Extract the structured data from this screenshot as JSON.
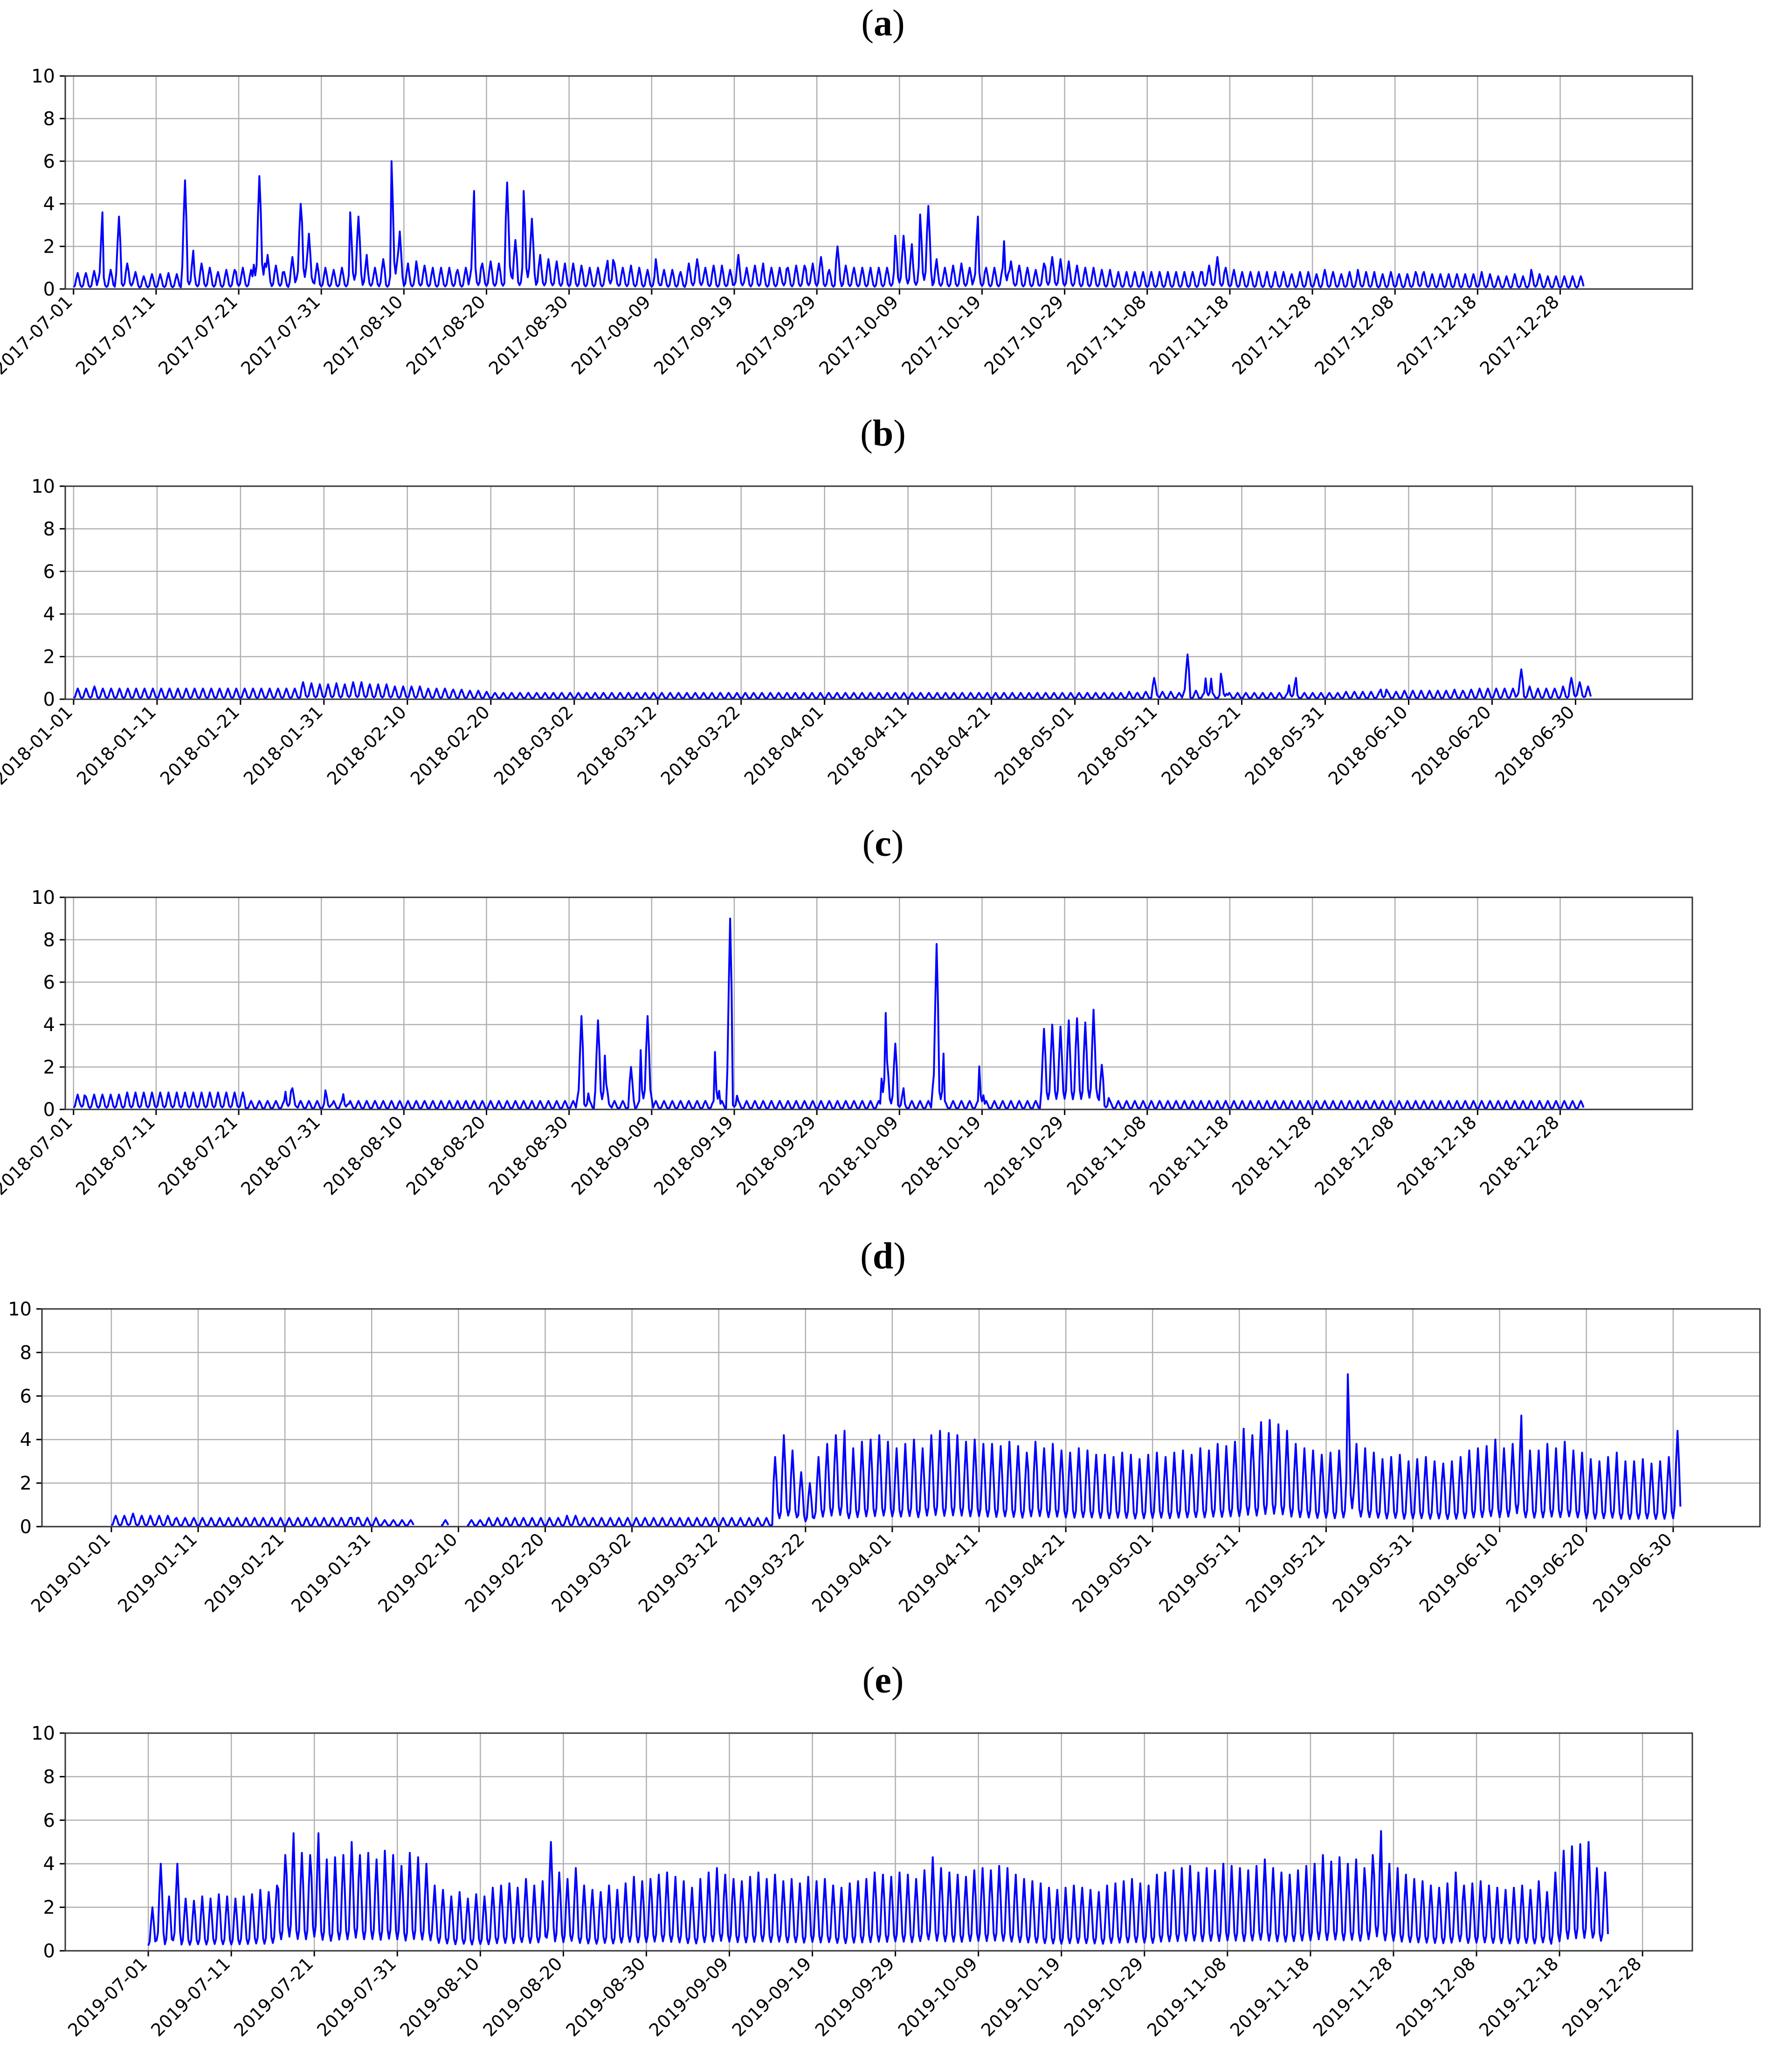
{
  "figure": {
    "panel_labels": [
      "a",
      "b",
      "c",
      "d",
      "e"
    ]
  },
  "chart_data": [
    {
      "panel": "a",
      "type": "line",
      "series_color": "#0000ff",
      "ylim": [
        0,
        10
      ],
      "yticks": [
        0,
        2,
        4,
        6,
        8,
        10
      ],
      "grid": true,
      "xlim": [
        "2017-06-30",
        "2018-01-13"
      ],
      "xticks": [
        "2017-07-01",
        "2017-07-11",
        "2017-07-21",
        "2017-07-31",
        "2017-08-10",
        "2017-08-20",
        "2017-08-30",
        "2017-09-09",
        "2017-09-19",
        "2017-09-29",
        "2017-10-09",
        "2017-10-19",
        "2017-10-29",
        "2017-11-08",
        "2017-11-18",
        "2017-11-28",
        "2017-12-08",
        "2017-12-18",
        "2017-12-28"
      ],
      "x_start": "2017-07-01",
      "x_end": "2017-12-31",
      "daily_peaks": [
        0.75,
        0.8,
        0.75,
        0.85,
        3.6,
        0.8,
        0.9,
        3.4,
        1.2,
        1.3,
        0.8,
        0.6,
        0.7,
        0.7,
        0.7,
        0.75,
        0.7,
        0.7,
        5.1,
        1.8,
        1.0,
        1.2,
        1.0,
        0.9,
        0.8,
        0.9,
        0.9,
        1.2,
        1.0,
        0.9,
        5.3,
        5.6,
        1.6,
        1.1,
        1.2,
        0.8,
        1.5,
        4.0,
        4.7,
        2.6,
        1.2,
        1.0,
        1.0,
        0.9,
        1.0,
        1.0,
        3.6,
        3.4,
        1.6,
        1.2,
        1.0,
        1.4,
        0.9,
        6.0,
        2.7,
        1.2,
        1.0,
        1.3,
        1.1,
        1.0,
        0.9,
        1.0,
        1.0,
        1.1,
        0.9,
        1.0,
        4.6,
        1.5,
        1.2,
        1.3,
        1.2,
        1.3,
        5.0,
        2.3,
        1.5,
        4.6,
        3.3,
        1.6,
        1.4,
        1.4,
        1.3,
        1.2,
        1.1,
        1.2,
        1.1,
        1.0,
        1.0,
        1.0,
        1.0,
        2.1,
        1.2,
        1.0,
        1.1,
        1.0,
        1.0,
        0.9,
        0.9,
        1.4,
        0.9,
        0.9,
        0.9,
        0.8,
        1.2,
        1.4,
        1.5,
        1.0,
        1.1,
        0.9,
        1.1,
        0.9,
        1.6,
        1.4,
        1.0,
        1.1,
        1.2,
        0.9,
        1.0,
        1.0,
        1.4,
        1.0,
        1.1,
        1.1,
        1.4,
        1.2,
        1.5,
        1.1,
        0.9,
        2.0,
        1.1,
        1.1,
        1.0,
        1.0,
        1.0,
        0.9,
        1.0,
        1.0,
        1.2,
        2.5,
        2.5,
        2.1,
        1.6,
        3.5,
        3.9,
        1.4,
        1.2,
        1.0,
        1.1,
        1.1,
        1.2,
        1.0,
        3.4,
        1.2,
        1.0,
        1.0,
        1.0,
        3.4,
        1.3,
        1.1,
        1.0,
        1.0,
        0.9,
        1.2,
        1.6,
        1.5,
        1.4,
        1.3,
        1.2,
        1.1,
        1.0,
        1.0,
        1.0,
        0.9,
        0.9,
        0.8,
        0.8,
        0.8,
        0.8,
        0.8,
        0.8,
        0.8,
        0.8,
        0.8,
        0.8,
        0.8,
        0.8,
        0.8,
        0.8,
        0.8,
        1.2,
        1.1,
        1.5,
        1.2,
        1.0,
        0.9,
        0.8,
        0.8,
        0.8,
        0.8,
        0.8,
        0.7,
        0.8,
        0.8,
        0.8,
        0.7,
        0.8,
        0.8,
        0.8,
        0.7,
        0.9,
        0.8,
        0.8,
        0.7,
        0.8,
        0.7,
        0.9,
        0.8,
        0.8,
        0.7,
        0.7,
        0.8,
        0.8,
        0.7,
        0.7,
        0.8,
        1.0,
        0.8,
        0.7,
        0.7,
        0.7,
        0.7,
        0.7,
        0.7,
        0.7,
        0.7,
        0.8,
        0.7,
        0.7,
        0.6,
        0.6,
        0.6,
        0.7,
        0.6,
        0.6,
        0.9,
        0.7,
        0.6,
        0.6,
        0.6,
        0.6,
        0.6,
        0.6,
        0.6
      ]
    },
    {
      "panel": "b",
      "type": "line",
      "series_color": "#0000ff",
      "ylim": [
        0,
        10
      ],
      "yticks": [
        0,
        2,
        4,
        6,
        8,
        10
      ],
      "grid": true,
      "xlim": [
        "2017-12-31",
        "2018-07-14"
      ],
      "xticks": [
        "2018-01-01",
        "2018-01-11",
        "2018-01-21",
        "2018-01-31",
        "2018-02-10",
        "2018-02-20",
        "2018-03-02",
        "2018-03-12",
        "2018-03-22",
        "2018-04-01",
        "2018-04-11",
        "2018-04-21",
        "2018-05-01",
        "2018-05-11",
        "2018-05-21",
        "2018-05-31",
        "2018-06-10",
        "2018-06-20",
        "2018-06-30"
      ],
      "x_start": "2018-01-01",
      "x_end": "2018-07-02",
      "daily_peaks": [
        0.5,
        0.5,
        0.6,
        0.5,
        0.5,
        0.5,
        0.5,
        0.5,
        0.5,
        0.5,
        0.5,
        0.5,
        0.5,
        0.5,
        0.5,
        0.5,
        0.5,
        0.5,
        0.5,
        0.5,
        0.5,
        0.5,
        0.5,
        0.5,
        0.5,
        0.5,
        0.5,
        0.5,
        0.5,
        0.5,
        0.8,
        0.75,
        0.7,
        0.7,
        0.75,
        0.7,
        0.8,
        0.8,
        0.75,
        0.7,
        0.7,
        0.7,
        0.6,
        0.6,
        0.6,
        0.6,
        0.5,
        0.5,
        0.5,
        0.5,
        0.45,
        0.45,
        0.4,
        0.4,
        0.35,
        0.3,
        0.3,
        0.3,
        0.3,
        0.3,
        0.3,
        0.3,
        0.3,
        0.3,
        0.3,
        0.3,
        0.3,
        0.3,
        0.3,
        0.3,
        0.3,
        0.3,
        0.3,
        0.3,
        0.3,
        0.3,
        0.3,
        0.3,
        0.3,
        0.3,
        0.3,
        0.3,
        0.3,
        0.3,
        0.3,
        0.3,
        0.3,
        0.3,
        0.3,
        0.3,
        0.3,
        0.3,
        0.3,
        0.3,
        0.3,
        0.3,
        0.3,
        0.3,
        0.3,
        0.3,
        0.3,
        0.3,
        0.3,
        0.3,
        0.3,
        0.3,
        0.3,
        0.3,
        0.3,
        0.3,
        0.3,
        0.3,
        0.3,
        0.3,
        0.3,
        0.3,
        0.3,
        0.3,
        0.3,
        0.3,
        0.3,
        0.3,
        0.3,
        0.3,
        0.3,
        0.3,
        0.3,
        0.3,
        0.3,
        0.3,
        0.3,
        0.3,
        0.3,
        0.3,
        0.3,
        0.3,
        0.3,
        0.3,
        0.3,
        0.35,
        0.3,
        0.35,
        1.0,
        0.35,
        0.35,
        0.3,
        2.1,
        0.4,
        0.3,
        1.5,
        0.3,
        1.2,
        0.3,
        0.3,
        0.3,
        0.3,
        0.3,
        0.3,
        0.3,
        0.3,
        1.0,
        0.3,
        0.3,
        0.3,
        0.3,
        0.3,
        0.3,
        0.35,
        0.35,
        0.35,
        0.35,
        0.35,
        0.7,
        0.35,
        0.35,
        0.4,
        0.4,
        0.4,
        0.4,
        0.4,
        0.4,
        0.45,
        0.4,
        0.45,
        0.45,
        0.5,
        0.5,
        0.5,
        0.5,
        0.5,
        1.4,
        0.6,
        0.5,
        0.5,
        0.5,
        0.5,
        0.6,
        1.0,
        0.8,
        0.6
      ]
    },
    {
      "panel": "c",
      "type": "line",
      "series_color": "#0000ff",
      "ylim": [
        0,
        10
      ],
      "yticks": [
        0,
        2,
        4,
        6,
        8,
        10
      ],
      "grid": true,
      "xlim": [
        "2018-06-30",
        "2019-01-13"
      ],
      "xticks": [
        "2018-07-01",
        "2018-07-11",
        "2018-07-21",
        "2018-07-31",
        "2018-08-10",
        "2018-08-20",
        "2018-08-30",
        "2018-09-09",
        "2018-09-19",
        "2018-09-29",
        "2018-10-09",
        "2018-10-19",
        "2018-10-29",
        "2018-11-08",
        "2018-11-18",
        "2018-11-28",
        "2018-12-08",
        "2018-12-18",
        "2018-12-28"
      ],
      "x_start": "2018-07-01",
      "x_end": "2018-12-31",
      "daily_peaks": [
        0.7,
        1.0,
        0.6,
        0.7,
        0.7,
        0.7,
        0.7,
        0.7,
        0.7,
        0.8,
        0.8,
        0.8,
        0.8,
        0.8,
        0.8,
        0.8,
        0.8,
        0.8,
        0.8,
        0.8,
        0.8,
        0.8,
        0.8,
        0.8,
        0.8,
        0.8,
        0.8,
        0.8,
        0.8,
        0.8,
        0.4,
        0.4,
        0.4,
        0.4,
        0.4,
        0.4,
        0.4,
        1.3,
        1.0,
        0.4,
        0.4,
        0.4,
        0.4,
        0.4,
        0.9,
        0.4,
        0.4,
        1.1,
        0.4,
        0.4,
        0.4,
        0.4,
        0.4,
        0.4,
        0.4,
        0.4,
        0.4,
        0.4,
        0.4,
        0.4,
        0.4,
        0.4,
        0.4,
        0.4,
        0.4,
        0.4,
        0.4,
        0.4,
        0.4,
        0.4,
        0.4,
        0.4,
        0.4,
        0.4,
        0.4,
        0.4,
        0.4,
        0.4,
        0.4,
        0.4,
        0.4,
        0.4,
        0.4,
        0.4,
        0.4,
        0.4,
        0.4,
        0.4,
        4.4,
        1.2,
        0.4,
        4.2,
        4.0,
        1.2,
        0.4,
        0.4,
        0.4,
        2.0,
        0.4,
        4.3,
        4.4,
        0.4,
        0.4,
        0.4,
        0.4,
        0.4,
        0.4,
        0.4,
        0.4,
        0.4,
        0.4,
        0.4,
        4.2,
        0.4,
        9.0,
        1.0,
        0.4,
        0.4,
        0.4,
        0.4,
        0.4,
        0.4,
        0.4,
        0.4,
        0.4,
        0.4,
        0.4,
        0.4,
        0.4,
        0.4,
        0.4,
        0.4,
        0.4,
        0.4,
        0.4,
        0.4,
        0.4,
        0.4,
        0.4,
        0.4,
        0.4,
        6.8,
        2.3,
        3.1,
        1.0,
        0.4,
        0.4,
        0.4,
        0.4,
        0.4,
        7.8,
        4.0,
        0.4,
        0.4,
        0.4,
        0.4,
        0.4,
        0.4,
        3.2,
        0.4,
        0.4,
        0.4,
        0.4,
        0.4,
        0.4,
        0.4,
        0.4,
        0.4,
        0.4,
        3.8,
        4.0,
        4.1,
        3.9,
        4.2,
        4.0,
        4.3,
        4.1,
        4.6,
        4.7,
        2.1,
        0.8,
        0.4,
        0.4,
        0.4,
        0.4,
        0.4,
        0.4,
        0.4,
        0.4,
        0.4,
        0.4,
        0.4,
        0.4,
        0.4,
        0.4,
        0.4,
        0.4,
        0.4,
        0.4,
        0.4,
        0.4,
        0.4,
        0.4,
        0.4,
        0.4,
        0.4,
        0.4,
        0.4,
        0.4,
        0.4,
        0.4,
        0.4,
        0.4,
        0.4,
        0.4,
        0.4,
        0.4,
        0.4,
        0.4,
        0.4,
        0.4,
        0.4,
        0.4,
        0.4,
        0.4,
        0.4,
        0.4,
        0.4,
        0.4,
        0.4,
        0.4,
        0.4,
        0.4,
        0.4,
        0.4,
        0.4,
        0.4,
        0.4,
        0.4,
        0.4,
        0.4,
        0.4,
        0.4,
        0.4,
        0.4,
        0.4,
        0.4,
        0.4,
        0.4,
        0.4,
        0.4,
        0.4,
        0.4,
        0.4,
        0.4,
        0.4,
        0.4,
        0.4,
        0.4,
        0.4,
        0.4,
        0.4,
        0.4,
        0.4
      ]
    },
    {
      "panel": "d",
      "type": "line",
      "series_color": "#0000ff",
      "ylim": [
        0,
        10
      ],
      "yticks": [
        0,
        2,
        4,
        6,
        8,
        10
      ],
      "grid": true,
      "xlim": [
        "2018-12-24",
        "2019-07-10"
      ],
      "xticks": [
        "2019-01-01",
        "2019-01-11",
        "2019-01-21",
        "2019-01-31",
        "2019-02-10",
        "2019-02-20",
        "2019-03-02",
        "2019-03-12",
        "2019-03-22",
        "2019-04-01",
        "2019-04-11",
        "2019-04-21",
        "2019-05-01",
        "2019-05-11",
        "2019-05-21",
        "2019-05-31",
        "2019-06-10",
        "2019-06-20",
        "2019-06-30"
      ],
      "x_start": "2019-01-01",
      "x_end": "2019-07-01",
      "gaps": [
        [
          "2019-02-05",
          "2019-02-08"
        ],
        [
          "2019-02-09",
          "2019-02-11"
        ]
      ],
      "daily_peaks": [
        0.5,
        0.5,
        0.6,
        0.5,
        0.5,
        0.5,
        0.5,
        0.5,
        0.4,
        0.4,
        0.4,
        0.4,
        0.4,
        0.4,
        0.4,
        0.4,
        0.4,
        0.4,
        0.4,
        0.4,
        0.4,
        0.4,
        0.4,
        0.4,
        0.4,
        0.4,
        0.4,
        0.4,
        0.4,
        0.4,
        0.6,
        0.4,
        0.4,
        0.4,
        0.3,
        0.3,
        0.3,
        0.3,
        0.3,
        0.3,
        0.3,
        0.3,
        0.3,
        0.3,
        0.3,
        0.3,
        0.3,
        0.4,
        0.4,
        0.4,
        0.4,
        0.4,
        0.4,
        0.4,
        0.4,
        0.4,
        0.4,
        0.5,
        0.5,
        0.4,
        0.4,
        0.4,
        0.4,
        0.4,
        0.4,
        0.4,
        0.4,
        0.4,
        0.4,
        0.4,
        0.4,
        0.4,
        0.4,
        0.4,
        0.4,
        0.4,
        0.4,
        0.4,
        0.4,
        0.4,
        0.4,
        0.4,
        0.4,
        3.2,
        4.2,
        3.5,
        2.5,
        2.0,
        3.2,
        3.8,
        4.2,
        4.4,
        3.2,
        3.6,
        3.9,
        4.0,
        4.2,
        3.9,
        3.6,
        3.8,
        4.0,
        3.6,
        4.2,
        4.4,
        4.1,
        4.3,
        4.2,
        3.9,
        4.0,
        3.8,
        3.8,
        3.7,
        3.9,
        3.7,
        3.4,
        3.9,
        4.0,
        3.6,
        3.8,
        3.5,
        3.4,
        3.6,
        3.5,
        3.3,
        3.3,
        3.2,
        3.4,
        3.3,
        3.1,
        3.2,
        3.3,
        3.4,
        3.2,
        3.4,
        3.5,
        3.3,
        3.6,
        3.5,
        3.8,
        3.7,
        3.9,
        4.0,
        4.5,
        4.2,
        4.8,
        4.9,
        4.7,
        4.4,
        3.8,
        3.6,
        3.5,
        3.3,
        3.4,
        3.2,
        3.5,
        7.0,
        3.8,
        3.6,
        3.4,
        3.1,
        3.2,
        3.3,
        3.0,
        3.1,
        3.2,
        3.0,
        3.1,
        2.9,
        3.0,
        3.2,
        3.5,
        3.6,
        3.7,
        4.0,
        3.6,
        3.8,
        5.1,
        3.5,
        3.4,
        3.5,
        3.8,
        3.6,
        3.9,
        3.5,
        3.4,
        3.1,
        3.0,
        3.2,
        3.4,
        3.0,
        2.9,
        3.0,
        3.1,
        2.9,
        3.0,
        3.2,
        4.4
      ]
    },
    {
      "panel": "e",
      "type": "line",
      "series_color": "#0000ff",
      "ylim": [
        0,
        10
      ],
      "yticks": [
        0,
        2,
        4,
        6,
        8,
        10
      ],
      "grid": true,
      "xlim": [
        "2019-06-21",
        "2020-01-03"
      ],
      "xticks": [
        "2019-07-01",
        "2019-07-11",
        "2019-07-21",
        "2019-07-31",
        "2019-08-10",
        "2019-08-20",
        "2019-08-30",
        "2019-09-09",
        "2019-09-19",
        "2019-09-29",
        "2019-10-09",
        "2019-10-19",
        "2019-10-29",
        "2019-11-08",
        "2019-11-18",
        "2019-11-28",
        "2019-12-08",
        "2019-12-18",
        "2019-12-28"
      ],
      "x_start": "2019-07-01",
      "x_end": "2019-12-24",
      "daily_peaks": [
        2.0,
        4.0,
        2.5,
        4.0,
        2.4,
        2.3,
        2.5,
        2.4,
        2.6,
        2.5,
        2.4,
        2.5,
        2.6,
        2.8,
        2.7,
        3.0,
        4.4,
        5.4,
        4.5,
        4.4,
        5.4,
        4.2,
        3.8,
        4.3,
        4.4,
        5.0,
        4.4,
        4.5,
        4.2,
        4.6,
        4.4,
        3.9,
        4.5,
        4.3,
        4.0,
        3.0,
        2.8,
        2.5,
        2.7,
        2.4,
        2.6,
        2.5,
        2.9,
        3.0,
        3.1,
        2.9,
        3.3,
        3.0,
        3.2,
        5.0,
        3.6,
        3.3,
        3.8,
        3.0,
        2.8,
        2.7,
        3.0,
        2.8,
        3.1,
        3.4,
        3.2,
        3.3,
        3.5,
        3.6,
        3.4,
        3.2,
        2.9,
        2.8,
        3.3,
        3.6,
        3.8,
        3.5,
        3.3,
        3.2,
        3.4,
        3.6,
        3.3,
        3.5,
        3.2,
        3.3,
        3.1,
        3.4,
        3.2,
        3.3,
        3.0,
        2.9,
        3.1,
        3.2,
        3.3,
        3.6,
        3.5,
        3.4,
        3.6,
        3.5,
        3.3,
        3.7,
        4.3,
        3.8,
        3.6,
        3.5,
        3.4,
        3.7,
        3.8,
        3.7,
        3.9,
        3.8,
        3.5,
        3.3,
        3.2,
        3.1,
        2.9,
        2.8,
        2.7,
        2.9,
        3.0,
        2.9,
        2.8,
        2.7,
        3.0,
        3.1,
        3.2,
        3.3,
        3.1,
        3.0,
        3.5,
        3.6,
        3.7,
        3.8,
        3.9,
        3.6,
        3.8,
        3.7,
        4.0,
        3.9,
        3.8,
        3.7,
        3.9,
        4.2,
        3.8,
        3.6,
        3.5,
        3.7,
        3.9,
        4.0,
        4.4,
        4.1,
        4.3,
        4.0,
        4.2,
        3.8,
        4.4,
        5.5,
        4.0,
        3.8,
        3.5,
        3.3,
        3.2,
        3.1,
        3.0,
        2.9,
        3.1,
        3.6,
        3.0,
        3.1,
        3.2,
        3.0,
        2.9,
        2.8,
        2.9,
        3.0,
        2.8,
        3.2,
        2.7,
        3.6,
        4.6,
        4.8,
        4.9,
        5.0,
        3.8,
        3.6
      ]
    }
  ]
}
